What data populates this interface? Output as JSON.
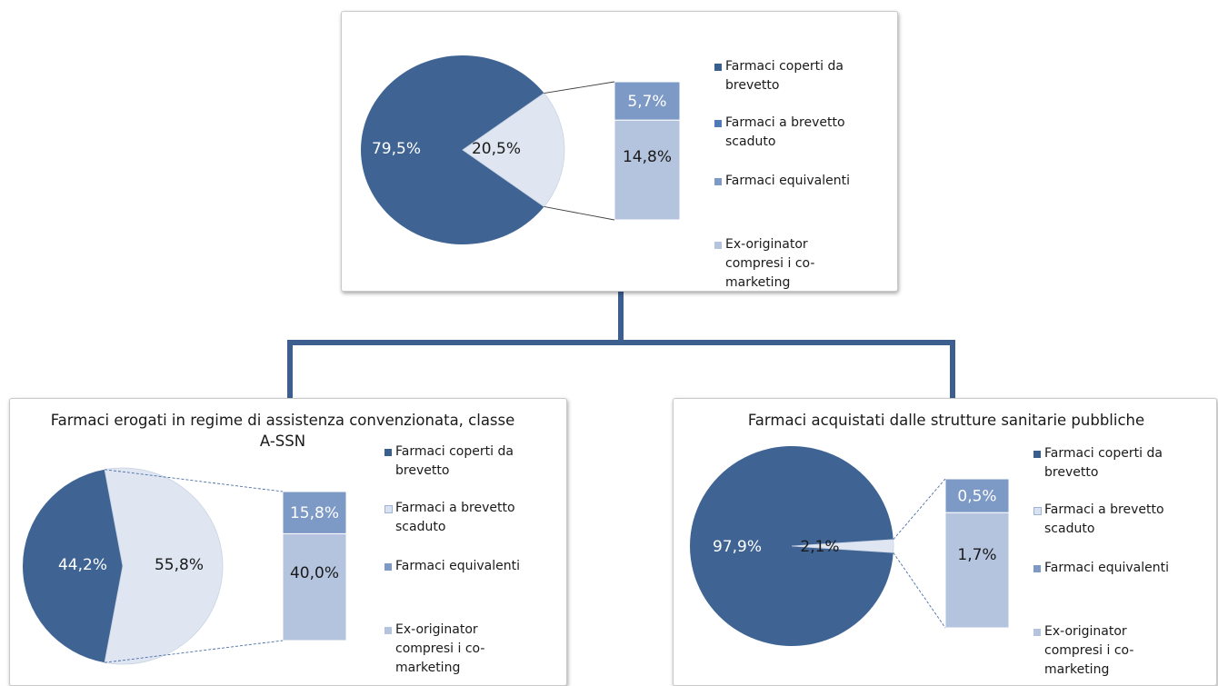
{
  "colors": {
    "pie_main": "#3f6494",
    "pie_other": "#dfe6f1",
    "bar_top": "#7d99c6",
    "bar_bottom": "#b4c3de",
    "connector": "#3d5f8f",
    "legend_patent": "#3a5f8f",
    "legend_expired": "#4f7cb8",
    "legend_equivalent": "#7d99c6",
    "legend_expired_light": "#d9e2f0",
    "legend_exorig": "#b4c3de"
  },
  "chart_data": [
    {
      "type": "pie",
      "subtype": "pie-of-bar",
      "title": "",
      "pie": [
        {
          "label": "79,5%",
          "value": 79.5
        },
        {
          "label": "20,5%",
          "value": 20.5
        }
      ],
      "bar": [
        {
          "label": "5,7%",
          "value": 5.7
        },
        {
          "label": "14,8%",
          "value": 14.8
        }
      ],
      "legend": [
        {
          "text": "Farmaci coperti da brevetto",
          "color": "#3a5f8f"
        },
        {
          "text": "Farmaci a brevetto scaduto",
          "color": "#4f7cb8"
        },
        {
          "text": "Farmaci equivalenti",
          "color": "#7d99c6"
        },
        {
          "text": "Ex-originator compresi i co-marketing",
          "color": "#b4c3de"
        }
      ]
    },
    {
      "type": "pie",
      "subtype": "pie-of-bar",
      "title": "Farmaci erogati in regime di assistenza convenzionata, classe A-SSN",
      "pie": [
        {
          "label": "44,2%",
          "value": 44.2
        },
        {
          "label": "55,8%",
          "value": 55.8
        }
      ],
      "bar": [
        {
          "label": "15,8%",
          "value": 15.8
        },
        {
          "label": "40,0%",
          "value": 40.0
        }
      ],
      "legend": [
        {
          "text": "Farmaci coperti da brevetto",
          "color": "#3a5f8f"
        },
        {
          "text": "Farmaci a brevetto scaduto",
          "color": "#d9e2f0"
        },
        {
          "text": "Farmaci equivalenti",
          "color": "#7d99c6"
        },
        {
          "text": "Ex-originator compresi i co-marketing",
          "color": "#b4c3de"
        }
      ]
    },
    {
      "type": "pie",
      "subtype": "pie-of-bar",
      "title": "Farmaci acquistati dalle strutture sanitarie pubbliche",
      "pie": [
        {
          "label": "97,9%",
          "value": 97.9
        },
        {
          "label": "2,1%",
          "value": 2.1
        }
      ],
      "bar": [
        {
          "label": "0,5%",
          "value": 0.5
        },
        {
          "label": "1,7%",
          "value": 1.7
        }
      ],
      "legend": [
        {
          "text": "Farmaci coperti da brevetto",
          "color": "#3a5f8f"
        },
        {
          "text": "Farmaci a brevetto scaduto",
          "color": "#d9e2f0"
        },
        {
          "text": "Farmaci equivalenti",
          "color": "#7d99c6"
        },
        {
          "text": "Ex-originator compresi i co-marketing",
          "color": "#b4c3de"
        }
      ]
    }
  ]
}
